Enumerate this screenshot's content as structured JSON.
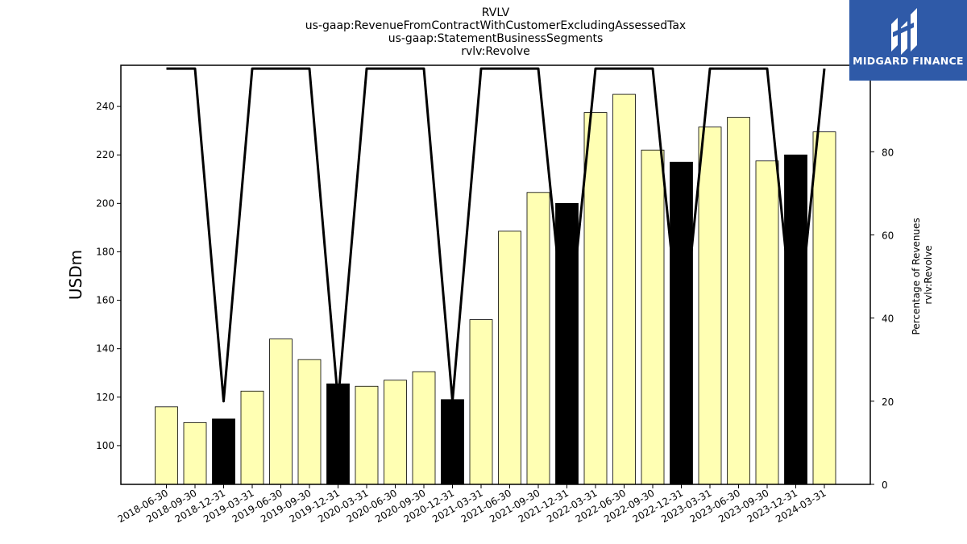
{
  "chart_data": {
    "type": "bar+line",
    "title_lines": [
      "RVLV",
      "us-gaap:RevenueFromContractWithCustomerExcludingAssessedTax",
      "us-gaap:StatementBusinessSegments",
      "rvlv:Revolve"
    ],
    "ylabel": "USDm",
    "y2label_lines": [
      "Percentage of Revenues",
      "rvlv:Revolve"
    ],
    "categories": [
      "2018-06-30",
      "2018-09-30",
      "2018-12-31",
      "2019-03-31",
      "2019-06-30",
      "2019-09-30",
      "2019-12-31",
      "2020-03-31",
      "2020-06-30",
      "2020-09-30",
      "2020-12-31",
      "2021-03-31",
      "2021-06-30",
      "2021-09-30",
      "2021-12-31",
      "2022-03-31",
      "2022-06-30",
      "2022-09-30",
      "2022-12-31",
      "2023-03-31",
      "2023-06-30",
      "2023-09-30",
      "2023-12-31",
      "2024-03-31"
    ],
    "bar_values": [
      116,
      109.5,
      111,
      122.5,
      144,
      135.5,
      125.5,
      124.5,
      127,
      130.5,
      119,
      152,
      188.5,
      204.5,
      200,
      237.5,
      245,
      222,
      217,
      231.5,
      235.5,
      217.5,
      220,
      229.5
    ],
    "bar_highlight": [
      false,
      false,
      true,
      false,
      false,
      false,
      true,
      false,
      false,
      false,
      true,
      false,
      false,
      false,
      true,
      false,
      false,
      false,
      true,
      false,
      false,
      false,
      true,
      false
    ],
    "line_values": [
      100,
      100,
      20,
      100,
      100,
      100,
      20,
      100,
      100,
      100,
      20,
      100,
      100,
      100,
      32,
      100,
      100,
      100,
      32,
      100,
      100,
      100,
      32,
      100
    ],
    "ylim": [
      84,
      257
    ],
    "y2lim": [
      0,
      100.8
    ],
    "yticks": [
      100,
      120,
      140,
      160,
      180,
      200,
      220,
      240
    ],
    "y2ticks": [
      0,
      20,
      40,
      60,
      80,
      100
    ],
    "colors": {
      "bar": "#ffffb3",
      "bar_highlight": "#000000",
      "line": "#000000"
    }
  },
  "logo": {
    "text": "MIDGARD FINANCE",
    "bg": "#2f5aa8"
  }
}
